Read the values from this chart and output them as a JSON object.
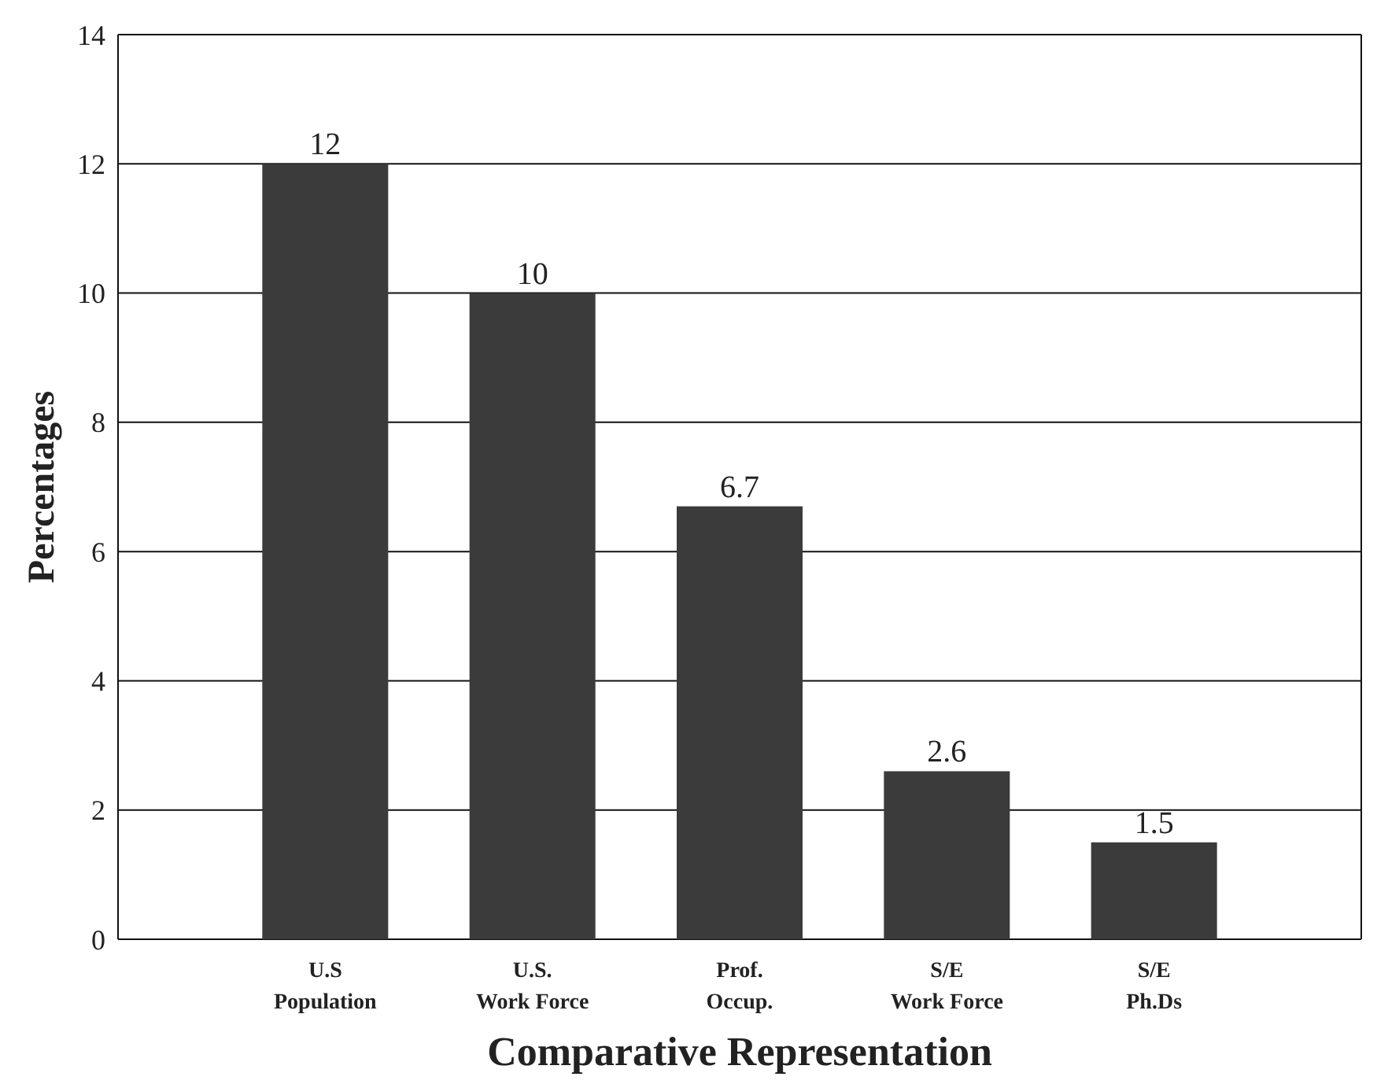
{
  "chart_data": {
    "type": "bar",
    "xlabel": "Comparative Representation",
    "ylabel": "Percentages",
    "categories": [
      "U.S\nPopulation",
      "U.S.\nWork Force",
      "Prof.\nOccup.",
      "S/E\nWork Force",
      "S/E\nPh.Ds"
    ],
    "values": [
      12,
      10,
      6.7,
      2.6,
      1.5
    ],
    "color": "#3b3b3b",
    "ylim": [
      0,
      14
    ],
    "yticks": [
      0,
      2,
      4,
      6,
      8,
      10,
      12,
      14
    ],
    "grid": "y",
    "data_labels": true
  }
}
